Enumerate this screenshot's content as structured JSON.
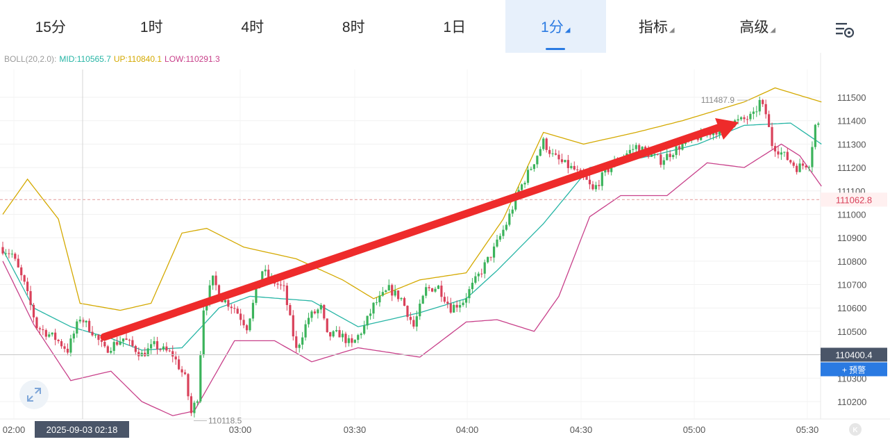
{
  "tabs": [
    {
      "label": "15分",
      "active": false,
      "dropdown": false
    },
    {
      "label": "1时",
      "active": false,
      "dropdown": false
    },
    {
      "label": "4时",
      "active": false,
      "dropdown": false
    },
    {
      "label": "8时",
      "active": false,
      "dropdown": false
    },
    {
      "label": "1日",
      "active": false,
      "dropdown": false
    },
    {
      "label": "1分",
      "active": true,
      "dropdown": true
    },
    {
      "label": "指标",
      "active": false,
      "dropdown": true
    },
    {
      "label": "高级",
      "active": false,
      "dropdown": true
    }
  ],
  "settings_icon": "chart-settings-icon",
  "expand_icon": "expand-icon",
  "indicator": {
    "label": "BOLL(20,2.0):",
    "mid": "MID:110565.7",
    "up": "UP:110840.1",
    "low": "LOW:110291.3"
  },
  "colors": {
    "up": "#3bb35b",
    "down": "#d9415a",
    "mid": "#26b5a5",
    "upper": "#d4a900",
    "lower": "#c8408a",
    "accent": "#2a7ae2",
    "arrow": "#ee2b2b"
  },
  "chart_data": {
    "type": "candlestick",
    "ylim": [
      110118.5,
      111487.9
    ],
    "y_ticks": [
      110200,
      110300,
      110400,
      110500,
      110600,
      110700,
      110800,
      110900,
      111000,
      111100,
      111200,
      111300,
      111400,
      111500
    ],
    "x_ticks": [
      "02:00",
      "03:00",
      "03:30",
      "04:00",
      "04:30",
      "05:00",
      "05:30"
    ],
    "crosshair": {
      "time": "2025-09-03 02:18",
      "price": "110400.4"
    },
    "reference_price": "111062.8",
    "alert_label": "+ 预警",
    "max_label": "111487.9",
    "min_label": "110118.5",
    "grid": true,
    "annotation": "red upward trend arrow",
    "bollinger": {
      "mid_anchors": [
        [
          0,
          110850
        ],
        [
          10,
          110600
        ],
        [
          22,
          110520
        ],
        [
          35,
          110470
        ],
        [
          45,
          110420
        ],
        [
          58,
          110430
        ],
        [
          70,
          110600
        ],
        [
          80,
          110650
        ],
        [
          100,
          110630
        ],
        [
          115,
          110520
        ],
        [
          135,
          110580
        ],
        [
          150,
          110640
        ],
        [
          160,
          110760
        ],
        [
          175,
          110960
        ],
        [
          190,
          111200
        ],
        [
          210,
          111250
        ],
        [
          225,
          111300
        ],
        [
          240,
          111380
        ],
        [
          255,
          111390
        ],
        [
          265,
          111300
        ]
      ],
      "upper_anchors": [
        [
          0,
          111000
        ],
        [
          8,
          111150
        ],
        [
          18,
          110980
        ],
        [
          25,
          110620
        ],
        [
          38,
          110590
        ],
        [
          48,
          110620
        ],
        [
          58,
          110920
        ],
        [
          66,
          110940
        ],
        [
          78,
          110860
        ],
        [
          95,
          110810
        ],
        [
          110,
          110720
        ],
        [
          120,
          110640
        ],
        [
          135,
          110720
        ],
        [
          150,
          110750
        ],
        [
          162,
          110980
        ],
        [
          175,
          111350
        ],
        [
          188,
          111300
        ],
        [
          205,
          111350
        ],
        [
          220,
          111400
        ],
        [
          240,
          111480
        ],
        [
          250,
          111540
        ],
        [
          265,
          111480
        ]
      ],
      "lower_anchors": [
        [
          0,
          110800
        ],
        [
          10,
          110530
        ],
        [
          22,
          110290
        ],
        [
          35,
          110330
        ],
        [
          45,
          110200
        ],
        [
          55,
          110140
        ],
        [
          62,
          110160
        ],
        [
          75,
          110460
        ],
        [
          88,
          110460
        ],
        [
          100,
          110370
        ],
        [
          115,
          110430
        ],
        [
          135,
          110390
        ],
        [
          150,
          110540
        ],
        [
          160,
          110550
        ],
        [
          172,
          110500
        ],
        [
          180,
          110650
        ],
        [
          190,
          110990
        ],
        [
          200,
          111080
        ],
        [
          215,
          111080
        ],
        [
          228,
          111220
        ],
        [
          240,
          111200
        ],
        [
          252,
          111300
        ],
        [
          258,
          111250
        ],
        [
          265,
          111120
        ]
      ]
    }
  }
}
